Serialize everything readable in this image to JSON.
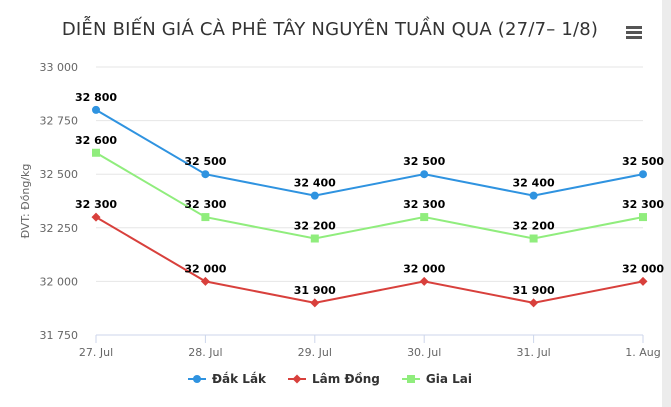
{
  "chart_data": {
    "type": "line",
    "title": "DIỄN BIẾN GIÁ CÀ PHÊ TÂY NGUYÊN TUẦN QUA (27/7– 1/8)",
    "ylabel": "ĐVT: Đồng/kg",
    "xlabel": "",
    "categories": [
      "27. Jul",
      "28. Jul",
      "29. Jul",
      "30. Jul",
      "31. Jul",
      "1. Aug"
    ],
    "ylim": [
      31750,
      33000
    ],
    "yticks": [
      31750,
      32000,
      32250,
      32500,
      32750,
      33000
    ],
    "ytick_labels": [
      "31 750",
      "32 000",
      "32 250",
      "32 500",
      "32 750",
      "33 000"
    ],
    "grid": true,
    "legend_position": "bottom",
    "series": [
      {
        "name": "Đắk Lắk",
        "color": "#2f93e0",
        "marker": "circle",
        "values": [
          32800,
          32500,
          32400,
          32500,
          32400,
          32500
        ],
        "labels": [
          "32 800",
          "32 500",
          "32 400",
          "32 500",
          "32 400",
          "32 500"
        ]
      },
      {
        "name": "Lâm Đồng",
        "color": "#d8403c",
        "marker": "diamond",
        "values": [
          32300,
          32000,
          31900,
          32000,
          31900,
          32000
        ],
        "labels": [
          "32 300",
          "32 000",
          "31 900",
          "32 000",
          "31 900",
          "32 000"
        ]
      },
      {
        "name": "Gia Lai",
        "color": "#90ed7d",
        "marker": "square",
        "values": [
          32600,
          32300,
          32200,
          32300,
          32200,
          32300
        ],
        "labels": [
          "32 600",
          "32 300",
          "32 200",
          "32 300",
          "32 200",
          "32 300"
        ]
      }
    ]
  },
  "toolbar": {
    "menu_icon": "hamburger-menu-icon"
  }
}
